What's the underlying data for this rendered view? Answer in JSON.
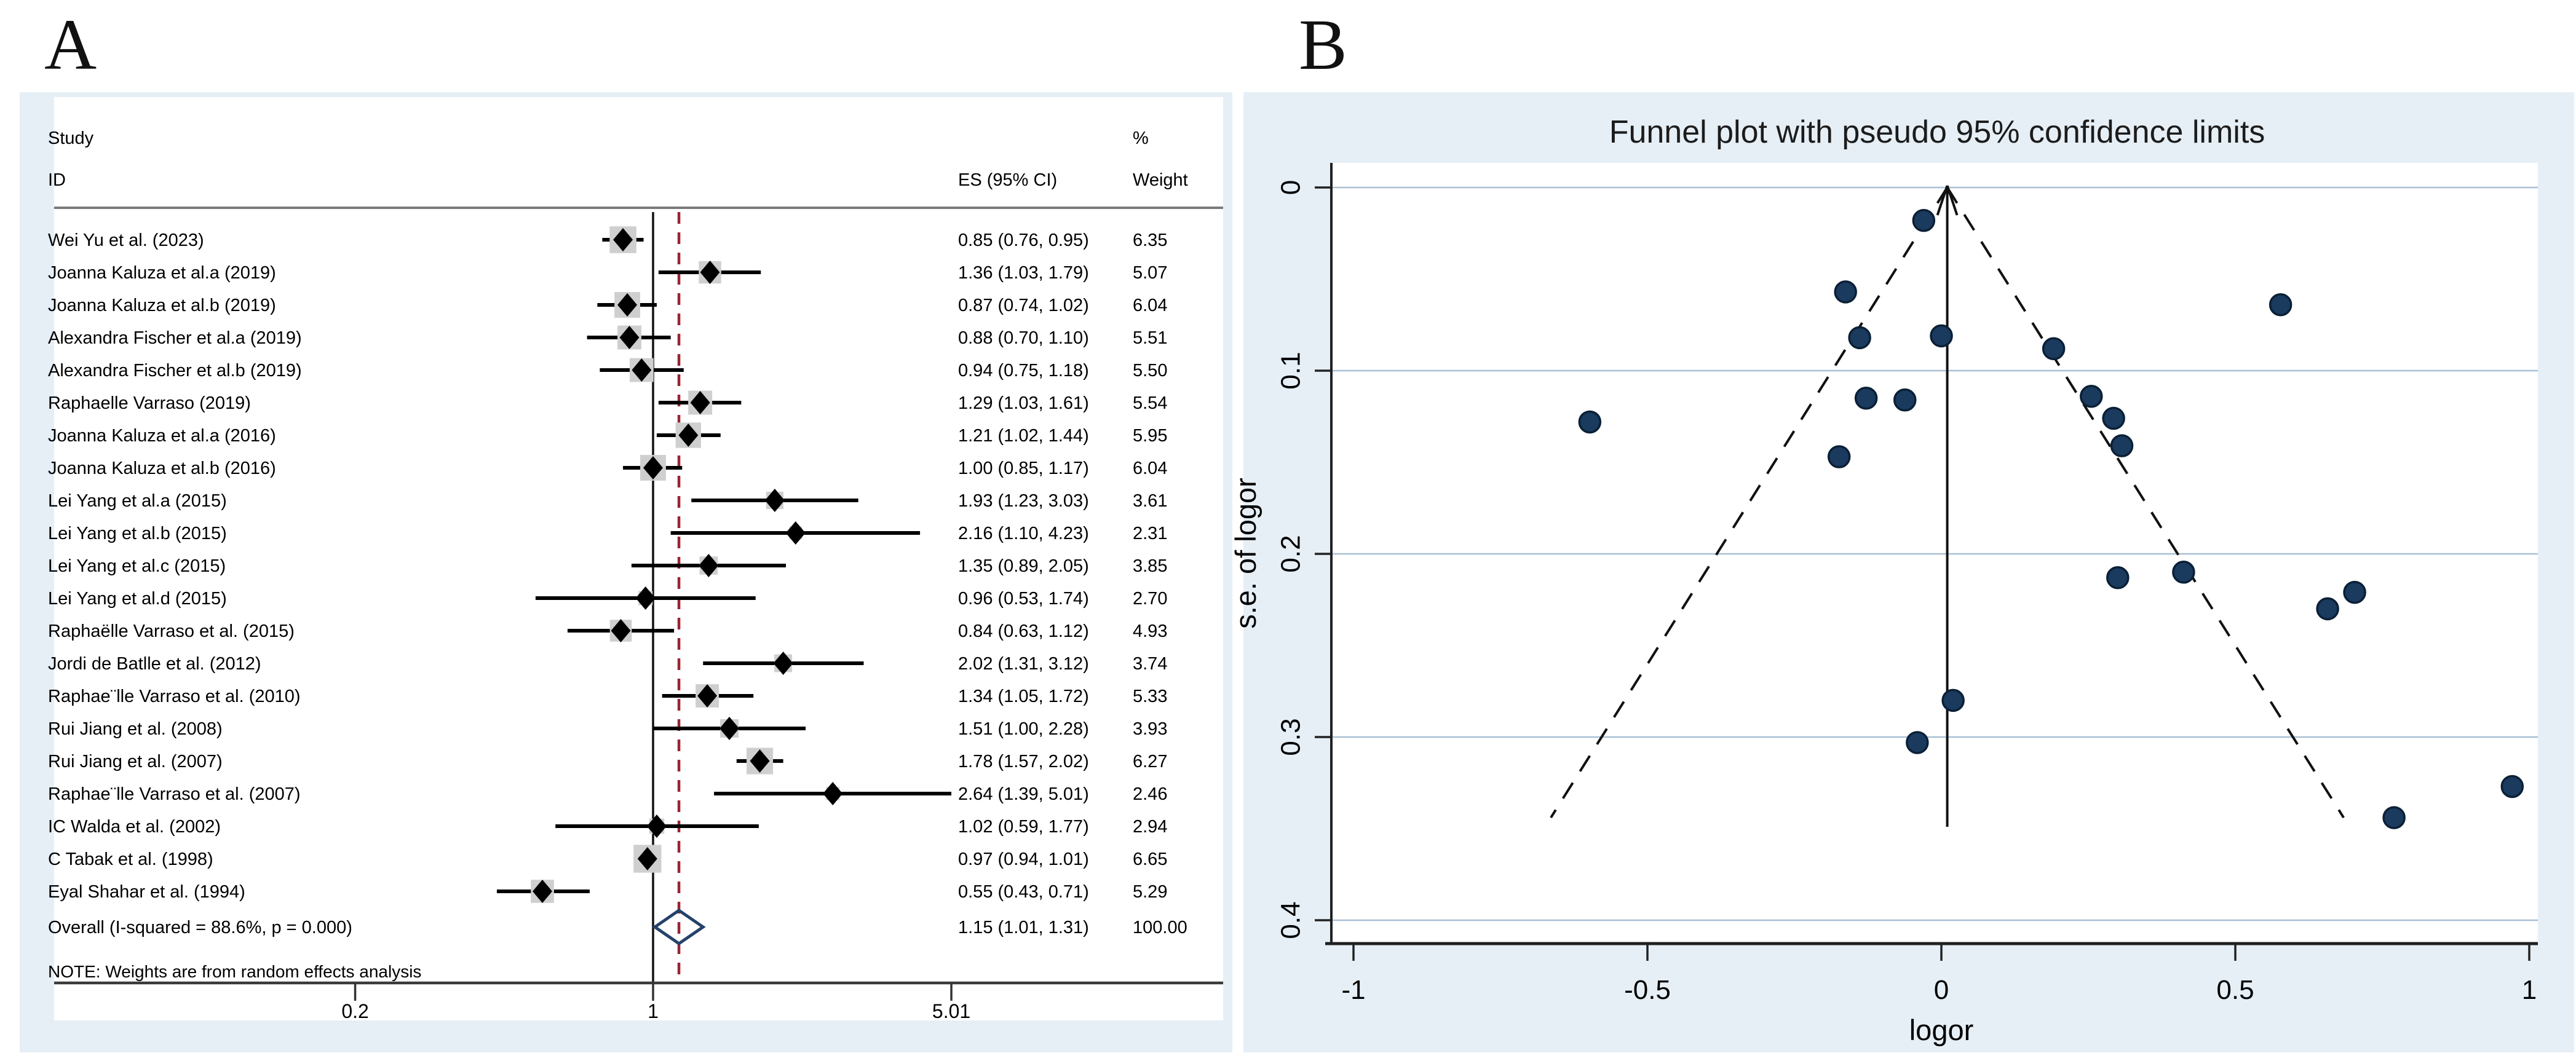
{
  "panels": {
    "a": "A",
    "b": "B"
  },
  "colors": {
    "panel_background": "#e6eff6",
    "plot_background": "#ffffff",
    "gridline": "#a9c0d6",
    "axis": "#1f1f1f",
    "header_rule": "#7a7a7a",
    "ci_line": "#000000",
    "weight_square": "#cfcfcf",
    "point_diamond": "#000000",
    "null_line": "#111111",
    "overall_dashed_line": "#9b2332",
    "overall_diamond_outline": "#24426b",
    "funnel_dot_fill": "#1a3a5e",
    "funnel_dot_stroke": "#0b2036"
  },
  "chart_data": [
    {
      "type": "scatter",
      "subtype": "forest_plot",
      "scale": "log",
      "columns": {
        "study_line1": "Study",
        "study_line2": "ID",
        "es": "ES (95% CI)",
        "pct": "%",
        "weight": "Weight"
      },
      "studies": [
        {
          "id": "Wei Yu et al. (2023)",
          "es": 0.85,
          "lo": 0.76,
          "hi": 0.95,
          "weight": 6.35,
          "es_text": "0.85 (0.76, 0.95)",
          "weight_text": "6.35"
        },
        {
          "id": "Joanna Kaluza et al.a (2019)",
          "es": 1.36,
          "lo": 1.03,
          "hi": 1.79,
          "weight": 5.07,
          "es_text": "1.36 (1.03, 1.79)",
          "weight_text": "5.07"
        },
        {
          "id": "Joanna Kaluza et al.b (2019)",
          "es": 0.87,
          "lo": 0.74,
          "hi": 1.02,
          "weight": 6.04,
          "es_text": "0.87 (0.74, 1.02)",
          "weight_text": "6.04"
        },
        {
          "id": "Alexandra Fischer et al.a (2019)",
          "es": 0.88,
          "lo": 0.7,
          "hi": 1.1,
          "weight": 5.51,
          "es_text": "0.88 (0.70, 1.10)",
          "weight_text": "5.51"
        },
        {
          "id": "Alexandra Fischer et al.b (2019)",
          "es": 0.94,
          "lo": 0.75,
          "hi": 1.18,
          "weight": 5.5,
          "es_text": "0.94 (0.75, 1.18)",
          "weight_text": "5.50"
        },
        {
          "id": "Raphaelle Varraso (2019)",
          "es": 1.29,
          "lo": 1.03,
          "hi": 1.61,
          "weight": 5.54,
          "es_text": "1.29 (1.03, 1.61)",
          "weight_text": "5.54"
        },
        {
          "id": "Joanna Kaluza  et al.a (2016)",
          "es": 1.21,
          "lo": 1.02,
          "hi": 1.44,
          "weight": 5.95,
          "es_text": "1.21 (1.02, 1.44)",
          "weight_text": "5.95"
        },
        {
          "id": "Joanna Kaluza  et al.b (2016)",
          "es": 1.0,
          "lo": 0.85,
          "hi": 1.17,
          "weight": 6.04,
          "es_text": "1.00 (0.85, 1.17)",
          "weight_text": "6.04"
        },
        {
          "id": "Lei Yang et al.a (2015)",
          "es": 1.93,
          "lo": 1.23,
          "hi": 3.03,
          "weight": 3.61,
          "es_text": "1.93 (1.23, 3.03)",
          "weight_text": "3.61"
        },
        {
          "id": "Lei Yang et al.b (2015)",
          "es": 2.16,
          "lo": 1.1,
          "hi": 4.23,
          "weight": 2.31,
          "es_text": "2.16 (1.10, 4.23)",
          "weight_text": "2.31"
        },
        {
          "id": "Lei Yang et al.c (2015)",
          "es": 1.35,
          "lo": 0.89,
          "hi": 2.05,
          "weight": 3.85,
          "es_text": "1.35 (0.89, 2.05)",
          "weight_text": "3.85"
        },
        {
          "id": "Lei Yang et al.d (2015)",
          "es": 0.96,
          "lo": 0.53,
          "hi": 1.74,
          "weight": 2.7,
          "es_text": "0.96 (0.53, 1.74)",
          "weight_text": "2.70"
        },
        {
          "id": "Raphaëlle Varraso et al. (2015)",
          "es": 0.84,
          "lo": 0.63,
          "hi": 1.12,
          "weight": 4.93,
          "es_text": "0.84 (0.63, 1.12)",
          "weight_text": "4.93"
        },
        {
          "id": "Jordi de Batlle et al. (2012)",
          "es": 2.02,
          "lo": 1.31,
          "hi": 3.12,
          "weight": 3.74,
          "es_text": "2.02 (1.31, 3.12)",
          "weight_text": "3.74"
        },
        {
          "id": "Raphae¨lle Varraso  et al. (2010)",
          "es": 1.34,
          "lo": 1.05,
          "hi": 1.72,
          "weight": 5.33,
          "es_text": "1.34 (1.05, 1.72)",
          "weight_text": "5.33"
        },
        {
          "id": "Rui Jiang et al. (2008)",
          "es": 1.51,
          "lo": 1.0,
          "hi": 2.28,
          "weight": 3.93,
          "es_text": "1.51 (1.00, 2.28)",
          "weight_text": "3.93"
        },
        {
          "id": "Rui Jiang et al. (2007)",
          "es": 1.78,
          "lo": 1.57,
          "hi": 2.02,
          "weight": 6.27,
          "es_text": "1.78 (1.57, 2.02)",
          "weight_text": "6.27"
        },
        {
          "id": "Raphae¨lle Varraso et al. (2007)",
          "es": 2.64,
          "lo": 1.39,
          "hi": 5.01,
          "weight": 2.46,
          "es_text": "2.64 (1.39, 5.01)",
          "weight_text": "2.46"
        },
        {
          "id": "IC Walda et al. (2002)",
          "es": 1.02,
          "lo": 0.59,
          "hi": 1.77,
          "weight": 2.94,
          "es_text": "1.02 (0.59, 1.77)",
          "weight_text": "2.94"
        },
        {
          "id": "C Tabak et al. (1998)",
          "es": 0.97,
          "lo": 0.94,
          "hi": 1.01,
          "weight": 6.65,
          "es_text": "0.97 (0.94, 1.01)",
          "weight_text": "6.65"
        },
        {
          "id": "Eyal Shahar et al. (1994)",
          "es": 0.55,
          "lo": 0.43,
          "hi": 0.71,
          "weight": 5.29,
          "es_text": "0.55 (0.43, 0.71)",
          "weight_text": "5.29"
        }
      ],
      "overall": {
        "id": "Overall  (I-squared = 88.6%, p = 0.000)",
        "es": 1.15,
        "lo": 1.01,
        "hi": 1.31,
        "es_text": "1.15 (1.01, 1.31)",
        "weight_text": "100.00"
      },
      "note": "NOTE: Weights are from random effects analysis",
      "x_ticks": [
        {
          "value": 0.2,
          "label": "0.2"
        },
        {
          "value": 1,
          "label": "1"
        },
        {
          "value": 5.01,
          "label": "5.01"
        }
      ],
      "null_line_value": 1,
      "overall_line_value": 1.15
    },
    {
      "type": "scatter",
      "subtype": "funnel_plot",
      "title": "Funnel plot with pseudo 95% confidence limits",
      "xlabel": "logor",
      "ylabel": "s.e. of logor",
      "xlim": [
        -1.04,
        1.01
      ],
      "ylim": [
        0,
        0.413
      ],
      "y_inverted": true,
      "grid": true,
      "x_ticks": [
        {
          "value": -1,
          "label": "-1"
        },
        {
          "value": -0.5,
          "label": "-0.5"
        },
        {
          "value": 0,
          "label": "0"
        },
        {
          "value": 0.5,
          "label": "0.5"
        },
        {
          "value": 1,
          "label": "1"
        }
      ],
      "y_ticks": [
        {
          "value": 0,
          "label": "0"
        },
        {
          "value": 0.1,
          "label": "0.1"
        },
        {
          "value": 0.2,
          "label": "0.2"
        },
        {
          "value": 0.3,
          "label": "0.3"
        },
        {
          "value": 0.4,
          "label": "0.4"
        }
      ],
      "funnel_center": 0.01,
      "ci_multiplier": 1.96,
      "funnel_se_max": 0.344,
      "points": [
        {
          "x": -0.163,
          "y": 0.057
        },
        {
          "x": 0.307,
          "y": 0.141
        },
        {
          "x": -0.139,
          "y": 0.082
        },
        {
          "x": -0.128,
          "y": 0.115
        },
        {
          "x": -0.062,
          "y": 0.116
        },
        {
          "x": 0.255,
          "y": 0.114
        },
        {
          "x": 0.191,
          "y": 0.088
        },
        {
          "x": 0.0,
          "y": 0.081
        },
        {
          "x": 0.657,
          "y": 0.23
        },
        {
          "x": 0.77,
          "y": 0.344
        },
        {
          "x": 0.3,
          "y": 0.213
        },
        {
          "x": -0.041,
          "y": 0.303
        },
        {
          "x": -0.174,
          "y": 0.147
        },
        {
          "x": 0.703,
          "y": 0.221
        },
        {
          "x": 0.293,
          "y": 0.126
        },
        {
          "x": 0.412,
          "y": 0.21
        },
        {
          "x": 0.577,
          "y": 0.064
        },
        {
          "x": 0.971,
          "y": 0.327
        },
        {
          "x": 0.02,
          "y": 0.28
        },
        {
          "x": -0.03,
          "y": 0.018
        },
        {
          "x": -0.598,
          "y": 0.128
        }
      ]
    }
  ]
}
